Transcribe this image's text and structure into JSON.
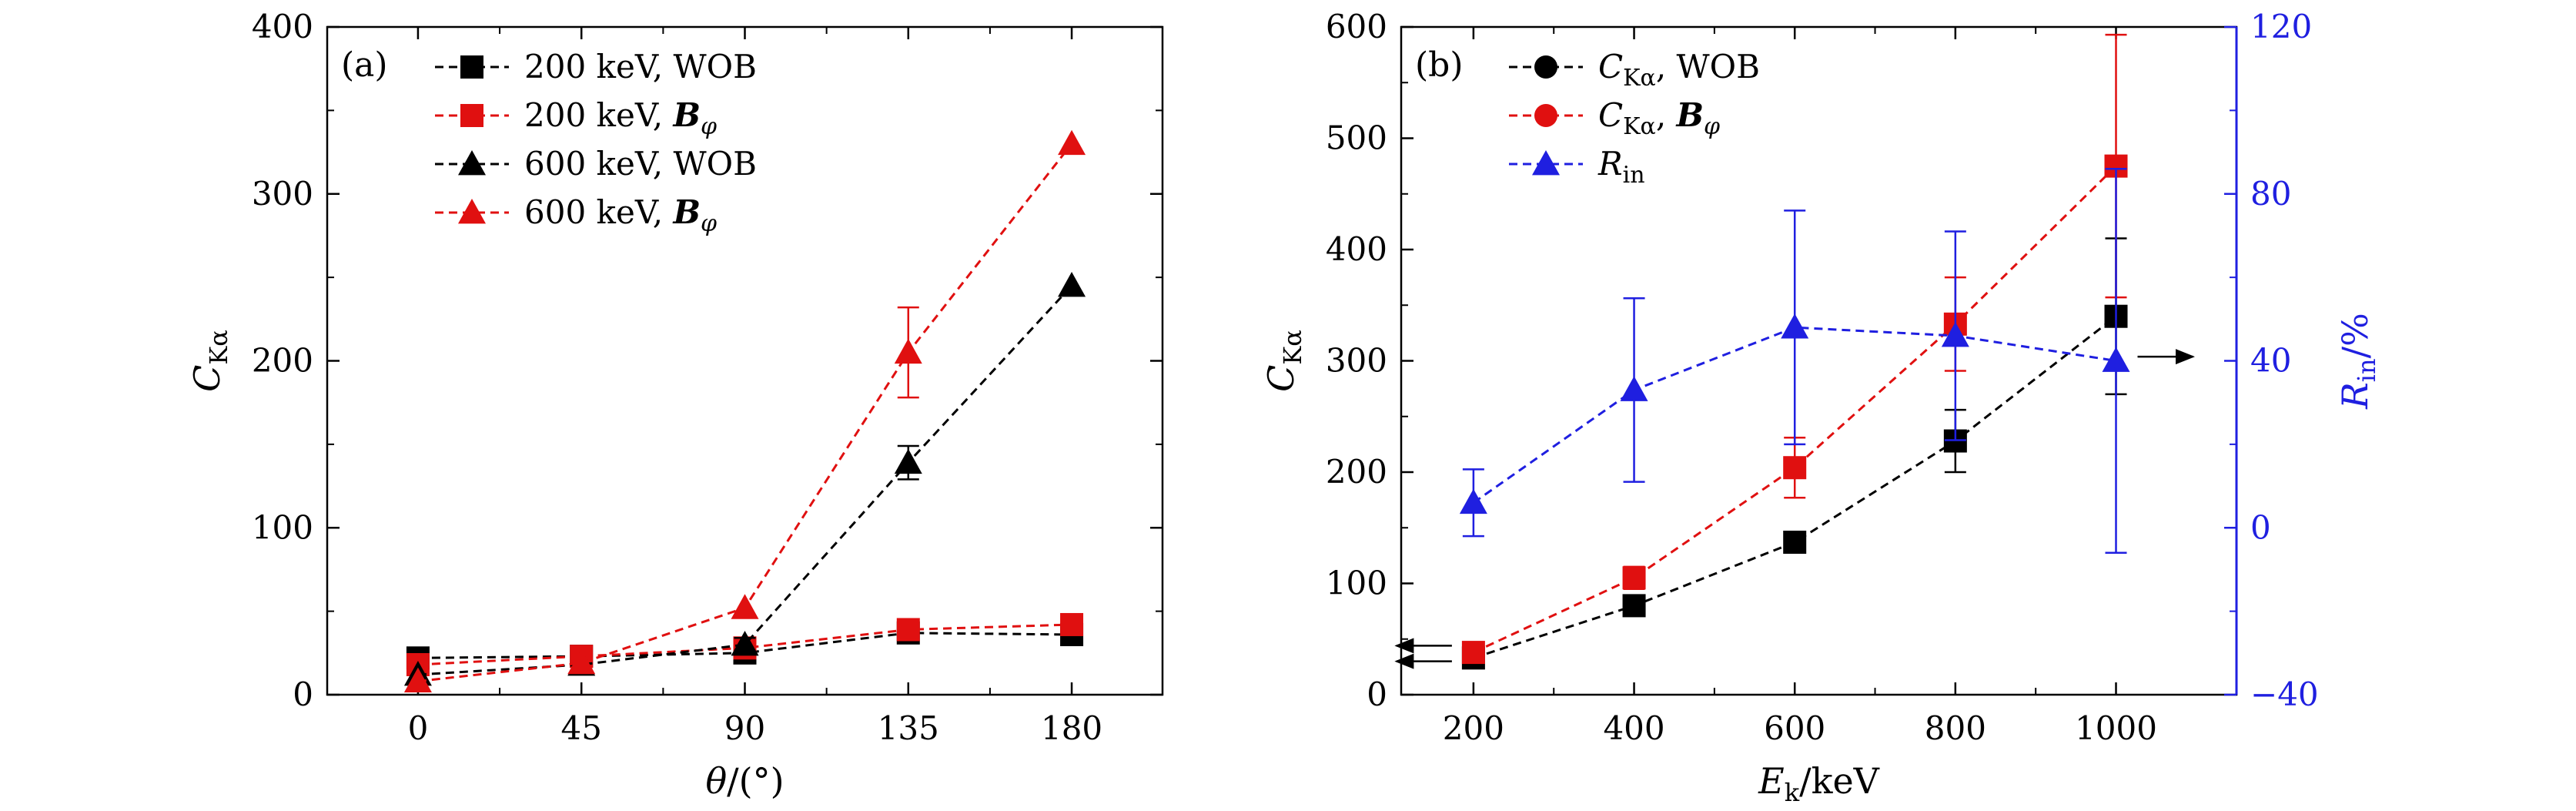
{
  "chart_data": [
    {
      "panel": "(a)",
      "type": "line",
      "xlabel": "θ/(°)",
      "ylabel": {
        "main": "C",
        "sub": "Kα"
      },
      "xlim": [
        -25,
        205
      ],
      "ylim": [
        0,
        400
      ],
      "xticks": [
        0,
        45,
        90,
        135,
        180
      ],
      "yticks": [
        0,
        100,
        200,
        300,
        400
      ],
      "legend_position": "top-left",
      "series": [
        {
          "name": "200 keV, WOB",
          "legend_parts": [
            "200 keV, WOB"
          ],
          "color": "#000000",
          "marker": "square",
          "x": [
            0,
            45,
            90,
            135,
            180
          ],
          "y": [
            22,
            23,
            25,
            37,
            36
          ],
          "err": [
            0,
            0,
            0,
            0,
            0
          ]
        },
        {
          "name": "200 keV, Bφ",
          "legend_parts": [
            "200 keV, ",
            "B",
            "φ"
          ],
          "color": "#e01010",
          "marker": "square",
          "x": [
            0,
            45,
            90,
            135,
            180
          ],
          "y": [
            18,
            23,
            28,
            39,
            42
          ],
          "err": [
            0,
            0,
            0,
            0,
            0
          ]
        },
        {
          "name": "600 keV, WOB",
          "legend_parts": [
            "600 keV, WOB"
          ],
          "color": "#000000",
          "marker": "triangle",
          "x": [
            0,
            45,
            90,
            135,
            180
          ],
          "y": [
            12,
            18,
            30,
            139,
            245
          ],
          "err": [
            0,
            0,
            4,
            10,
            0
          ]
        },
        {
          "name": "600 keV, Bφ",
          "legend_parts": [
            "600 keV, ",
            "B",
            "φ"
          ],
          "color": "#e01010",
          "marker": "triangle",
          "x": [
            0,
            45,
            90,
            135,
            180
          ],
          "y": [
            8,
            19,
            52,
            205,
            330
          ],
          "err": [
            0,
            0,
            0,
            27,
            0
          ]
        }
      ]
    },
    {
      "panel": "(b)",
      "type": "line",
      "xlabel": {
        "main": "E",
        "sub": "k",
        "rest": "/keV"
      },
      "ylabel": {
        "main": "C",
        "sub": "Kα"
      },
      "y2label": {
        "main": "R",
        "sub": "in",
        "rest": "/%"
      },
      "xlim": [
        110,
        1150
      ],
      "ylim": [
        0,
        600
      ],
      "y2lim": [
        -40,
        120
      ],
      "xticks": [
        200,
        400,
        600,
        800,
        1000
      ],
      "yticks": [
        0,
        100,
        200,
        300,
        400,
        500,
        600
      ],
      "y2ticks": [
        -40,
        0,
        40,
        80,
        120
      ],
      "y2ticklabels": [
        "−40",
        "0",
        "40",
        "80",
        "120"
      ],
      "legend_position": "top-left",
      "series": [
        {
          "name": "CKα, WOB",
          "legend_parts": [
            "C",
            "Kα",
            ", WOB"
          ],
          "axis": "left",
          "color": "#000000",
          "marker": "square",
          "legend_marker": "circle",
          "x": [
            200,
            400,
            600,
            800,
            1000
          ],
          "y": [
            33,
            80,
            137,
            228,
            340
          ],
          "err": [
            0,
            0,
            7,
            28,
            70
          ]
        },
        {
          "name": "CKα, Bφ",
          "legend_parts": [
            "C",
            "Kα",
            ", ",
            "B",
            "φ"
          ],
          "axis": "left",
          "color": "#e01010",
          "marker": "square",
          "legend_marker": "circle",
          "x": [
            200,
            400,
            600,
            800,
            1000
          ],
          "y": [
            38,
            105,
            204,
            333,
            475
          ],
          "err": [
            0,
            10,
            27,
            42,
            118
          ]
        },
        {
          "name": "Rin",
          "legend_parts": [
            "R",
            "in"
          ],
          "axis": "right",
          "color": "#1f1fe0",
          "marker": "triangle",
          "legend_marker": "triangle",
          "x": [
            200,
            400,
            600,
            800,
            1000
          ],
          "y": [
            6,
            33,
            48,
            46,
            40
          ],
          "err": [
            8,
            22,
            28,
            25,
            46
          ]
        }
      ],
      "annotations": [
        {
          "type": "arrow",
          "direction": "left",
          "axis": "left",
          "x": 200,
          "y": 44
        },
        {
          "type": "arrow",
          "direction": "left",
          "axis": "left",
          "x": 200,
          "y": 30
        },
        {
          "type": "arrow",
          "direction": "right",
          "axis": "right",
          "x": 1000,
          "y": 41
        }
      ]
    }
  ]
}
